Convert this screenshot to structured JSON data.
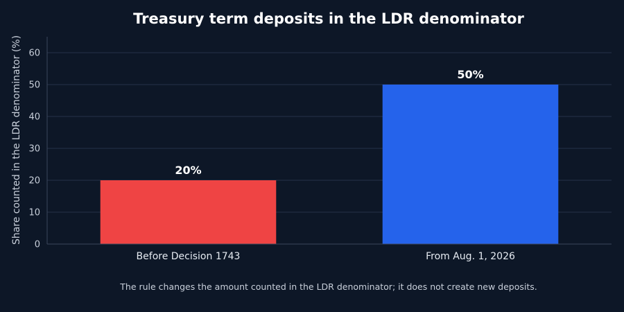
{
  "chart_data": {
    "type": "bar",
    "title": "Treasury term deposits in the LDR denominator",
    "xlabel": "",
    "ylabel": "Share counted in the LDR denominator (%)",
    "ylim": [
      0,
      65
    ],
    "yticks": [
      0,
      10,
      20,
      30,
      40,
      50,
      60
    ],
    "grid": true,
    "categories": [
      "Before Decision 1743",
      "From Aug. 1, 2026"
    ],
    "values": [
      20,
      50
    ],
    "data_labels": [
      "20%",
      "50%"
    ],
    "colors": [
      "#ef4444",
      "#2563eb"
    ],
    "footnote": "The rule changes the amount counted in the LDR denominator; it does not create new deposits."
  }
}
